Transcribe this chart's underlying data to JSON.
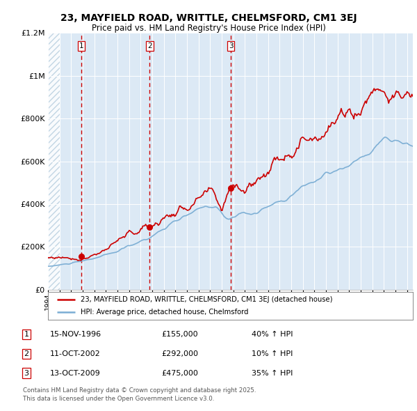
{
  "title": "23, MAYFIELD ROAD, WRITTLE, CHELMSFORD, CM1 3EJ",
  "subtitle": "Price paid vs. HM Land Registry's House Price Index (HPI)",
  "title_fontsize": 10,
  "subtitle_fontsize": 8.5,
  "bg_color": "#dce9f5",
  "hatch_color": "#b8cfe0",
  "grid_color": "#ffffff",
  "red_line_color": "#cc0000",
  "blue_line_color": "#7aadd4",
  "dashed_line_color": "#cc0000",
  "purchases": [
    {
      "label": "1",
      "date_num": 1996.88,
      "price": 155000,
      "hpi_pct": "40% ↑ HPI",
      "date_str": "15-NOV-1996"
    },
    {
      "label": "2",
      "date_num": 2002.78,
      "price": 292000,
      "hpi_pct": "10% ↑ HPI",
      "date_str": "11-OCT-2002"
    },
    {
      "label": "3",
      "date_num": 2009.79,
      "price": 475000,
      "hpi_pct": "35% ↑ HPI",
      "date_str": "13-OCT-2009"
    }
  ],
  "xmin": 1994.0,
  "xmax": 2025.5,
  "ymin": 0,
  "ymax": 1200000,
  "yticks": [
    0,
    200000,
    400000,
    600000,
    800000,
    1000000,
    1200000
  ],
  "ytick_labels": [
    "£0",
    "£200K",
    "£400K",
    "£600K",
    "£800K",
    "£1M",
    "£1.2M"
  ],
  "legend_line1": "23, MAYFIELD ROAD, WRITTLE, CHELMSFORD, CM1 3EJ (detached house)",
  "legend_line2": "HPI: Average price, detached house, Chelmsford",
  "footer1": "Contains HM Land Registry data © Crown copyright and database right 2025.",
  "footer2": "This data is licensed under the Open Government Licence v3.0."
}
